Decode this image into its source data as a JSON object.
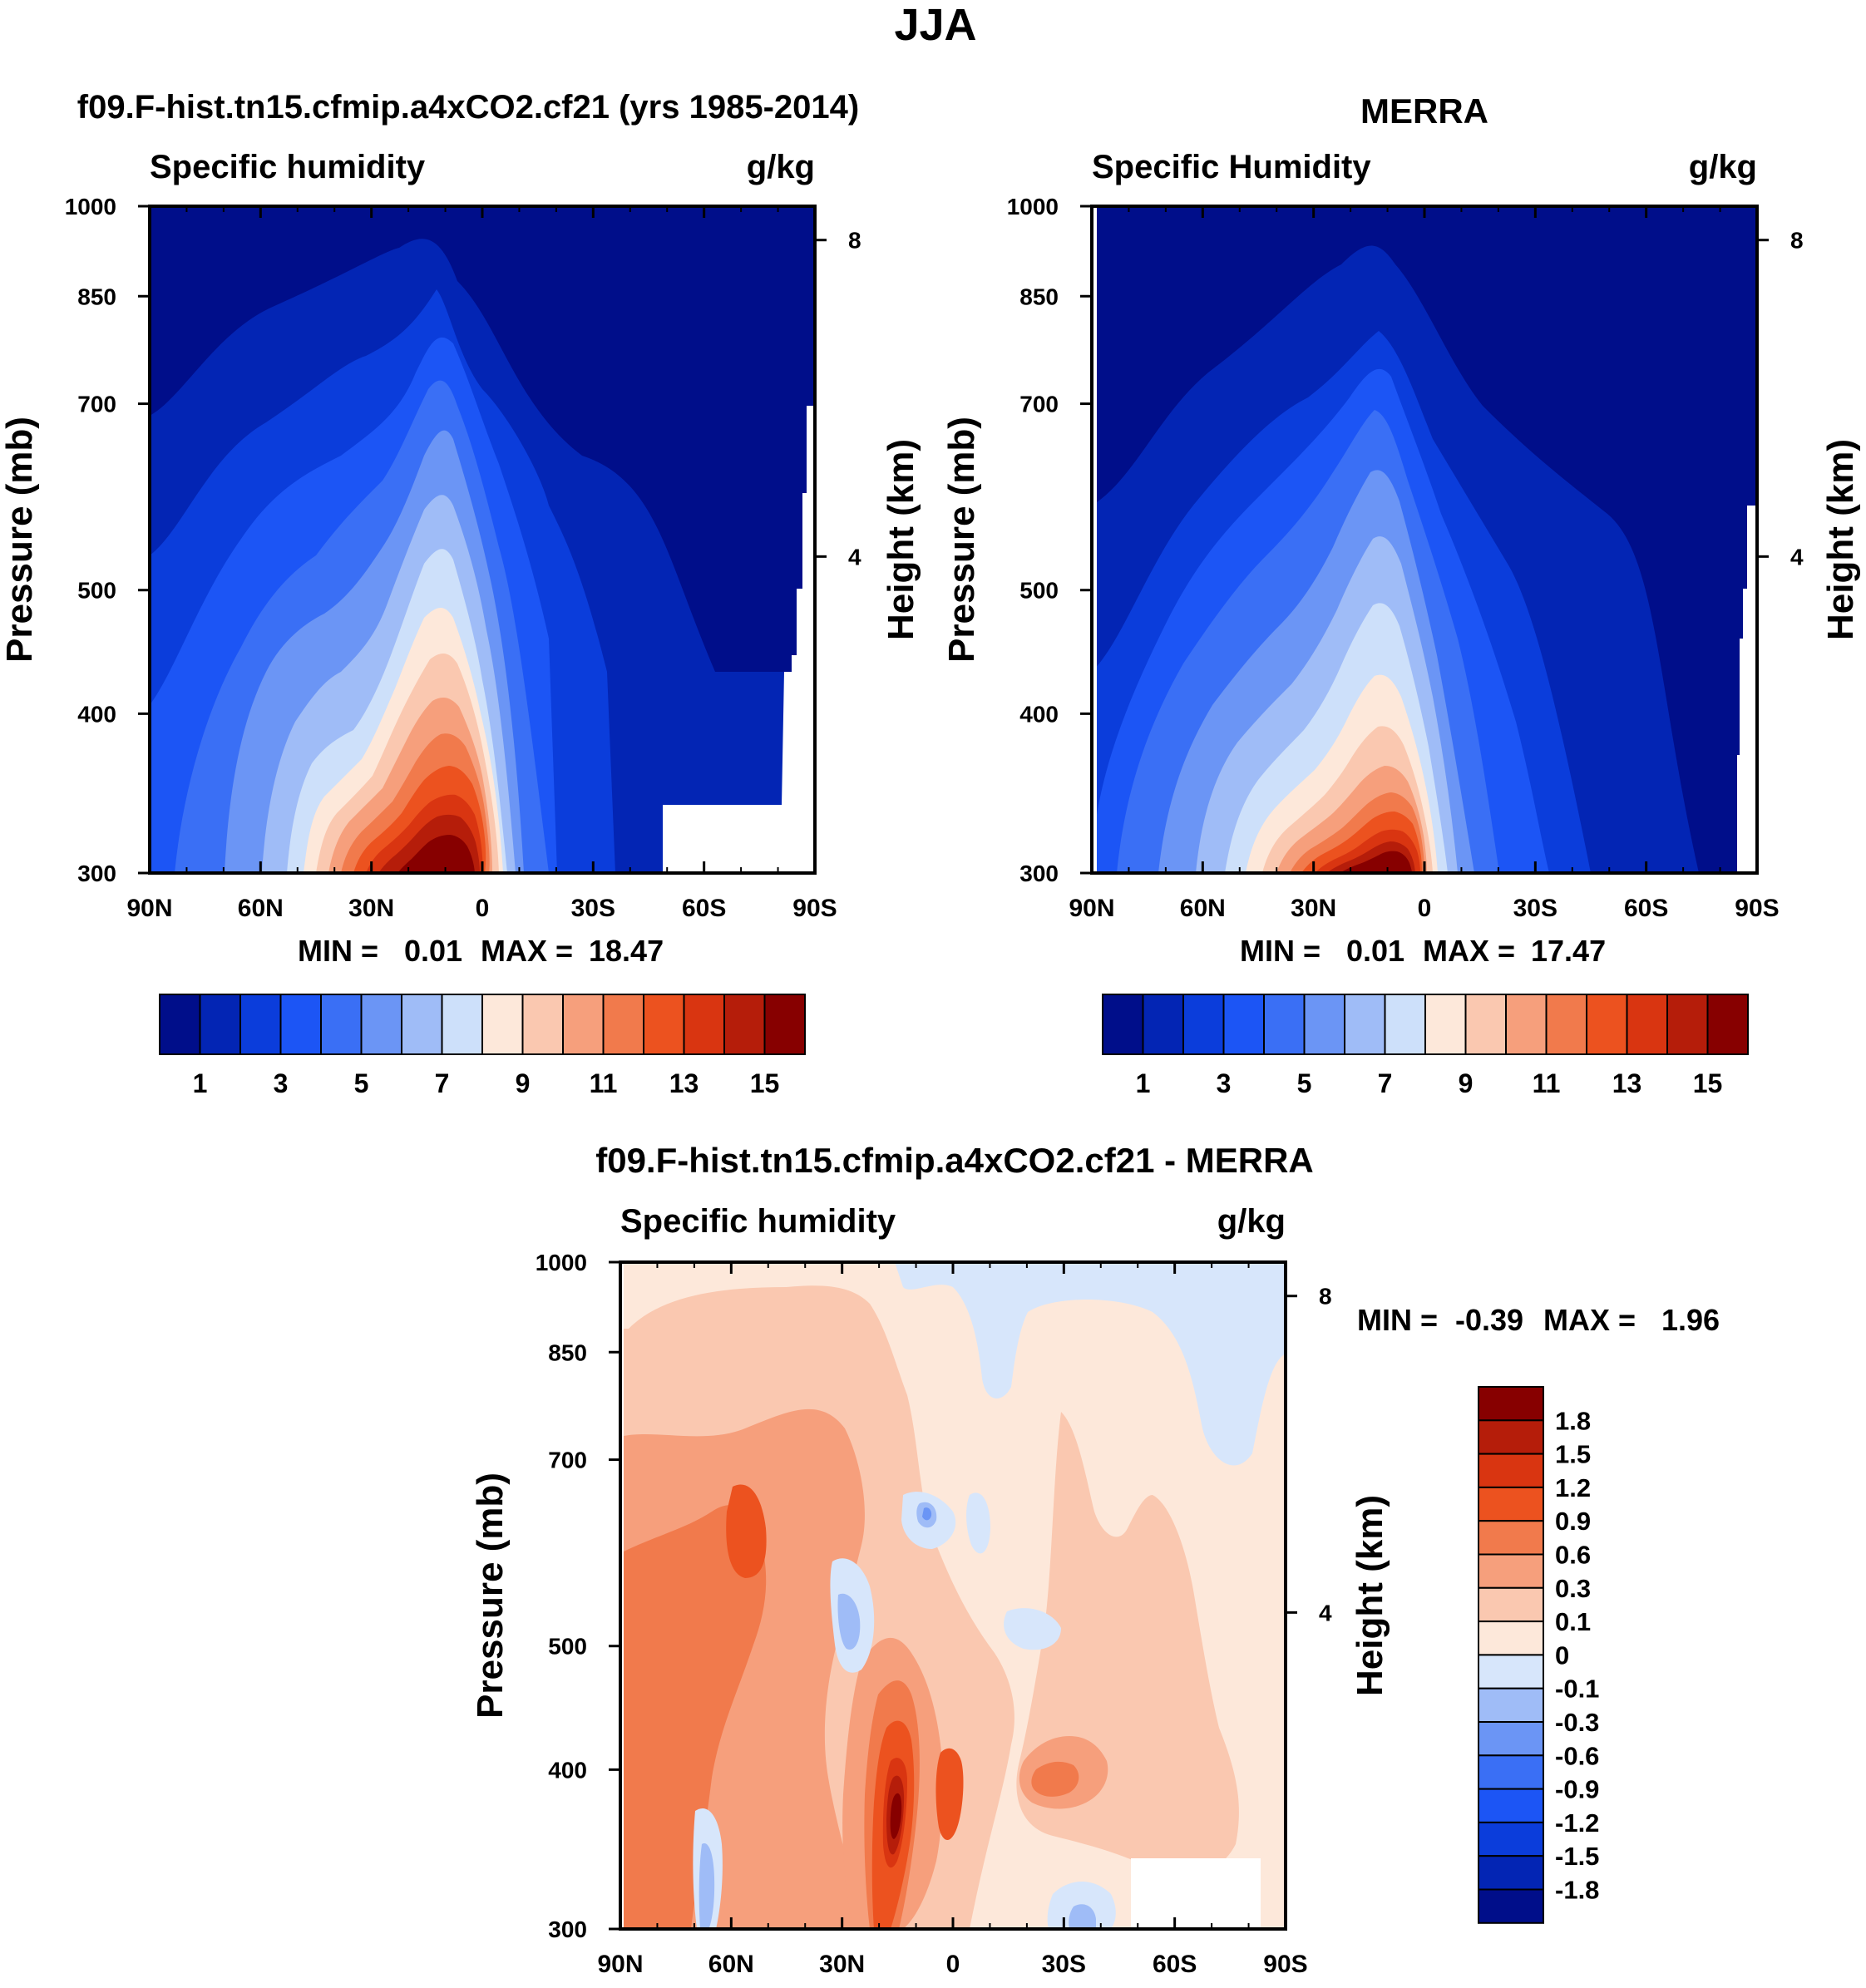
{
  "page_title": "JJA",
  "colors": {
    "seq": [
      "#000e8a",
      "#0325b4",
      "#0b3ddb",
      "#1c55f5",
      "#3a6ff5",
      "#6b95f5",
      "#9fbcf7",
      "#cde0fa",
      "#fde8da",
      "#fac8b0",
      "#f69f7c",
      "#f17a4c",
      "#ec521f",
      "#d93511",
      "#b51d0a",
      "#870000"
    ],
    "div": [
      "#000e8a",
      "#0325b4",
      "#0b3ddb",
      "#1c55f5",
      "#3a6ff5",
      "#6b95f5",
      "#9fbcf7",
      "#d7e6fb",
      "#fde8da",
      "#fac8b0",
      "#f69f7c",
      "#f17a4c",
      "#ec521f",
      "#d93511",
      "#b51d0a",
      "#870000"
    ]
  },
  "chart_data": [
    {
      "type": "contour",
      "title": "f09.F-hist.tn15.cfmip.a4xCO2.cf21 (yrs 1985-2014)",
      "left_string": "Specific humidity",
      "right_string": "g/kg",
      "ylabel": "Pressure (mb)",
      "ylabel_right": "Height (km)",
      "x_ticks": [
        "90N",
        "60N",
        "30N",
        "0",
        "30S",
        "60S",
        "90S"
      ],
      "y_ticks": [
        "300",
        "400",
        "500",
        "700",
        "850",
        "1000"
      ],
      "y_right_ticks": [
        "8",
        "4"
      ],
      "stats": {
        "min_label": "MIN =",
        "min": "0.01",
        "max_label": "MAX =",
        "max": "18.47"
      },
      "colorbar_labels": [
        "1",
        "3",
        "5",
        "7",
        "9",
        "11",
        "13",
        "15"
      ],
      "peak": 18.47
    },
    {
      "type": "contour",
      "title": "MERRA",
      "left_string": "Specific Humidity",
      "right_string": "g/kg",
      "ylabel": "Pressure (mb)",
      "ylabel_right": "Height (km)",
      "x_ticks": [
        "90N",
        "60N",
        "30N",
        "0",
        "30S",
        "60S",
        "90S"
      ],
      "y_ticks": [
        "300",
        "400",
        "500",
        "700",
        "850",
        "1000"
      ],
      "y_right_ticks": [
        "8",
        "4"
      ],
      "stats": {
        "min_label": "MIN =",
        "min": "0.01",
        "max_label": "MAX =",
        "max": "17.47"
      },
      "colorbar_labels": [
        "1",
        "3",
        "5",
        "7",
        "9",
        "11",
        "13",
        "15"
      ],
      "peak": 17.47
    },
    {
      "type": "contour",
      "title": "f09.F-hist.tn15.cfmip.a4xCO2.cf21 - MERRA",
      "left_string": "Specific humidity",
      "right_string": "g/kg",
      "ylabel": "Pressure (mb)",
      "ylabel_right": "Height (km)",
      "x_ticks": [
        "90N",
        "60N",
        "30N",
        "0",
        "30S",
        "60S",
        "90S"
      ],
      "y_ticks": [
        "300",
        "400",
        "500",
        "700",
        "850",
        "1000"
      ],
      "y_right_ticks": [
        "8",
        "4"
      ],
      "stats": {
        "min_label": "MIN =",
        "min": "-0.39",
        "max_label": "MAX =",
        "max": "1.96"
      },
      "colorbar_labels": [
        "1.8",
        "1.5",
        "1.2",
        "0.9",
        "0.6",
        "0.3",
        "0.1",
        "0",
        "-0.1",
        "-0.3",
        "-0.6",
        "-0.9",
        "-1.2",
        "-1.5",
        "-1.8"
      ]
    }
  ]
}
